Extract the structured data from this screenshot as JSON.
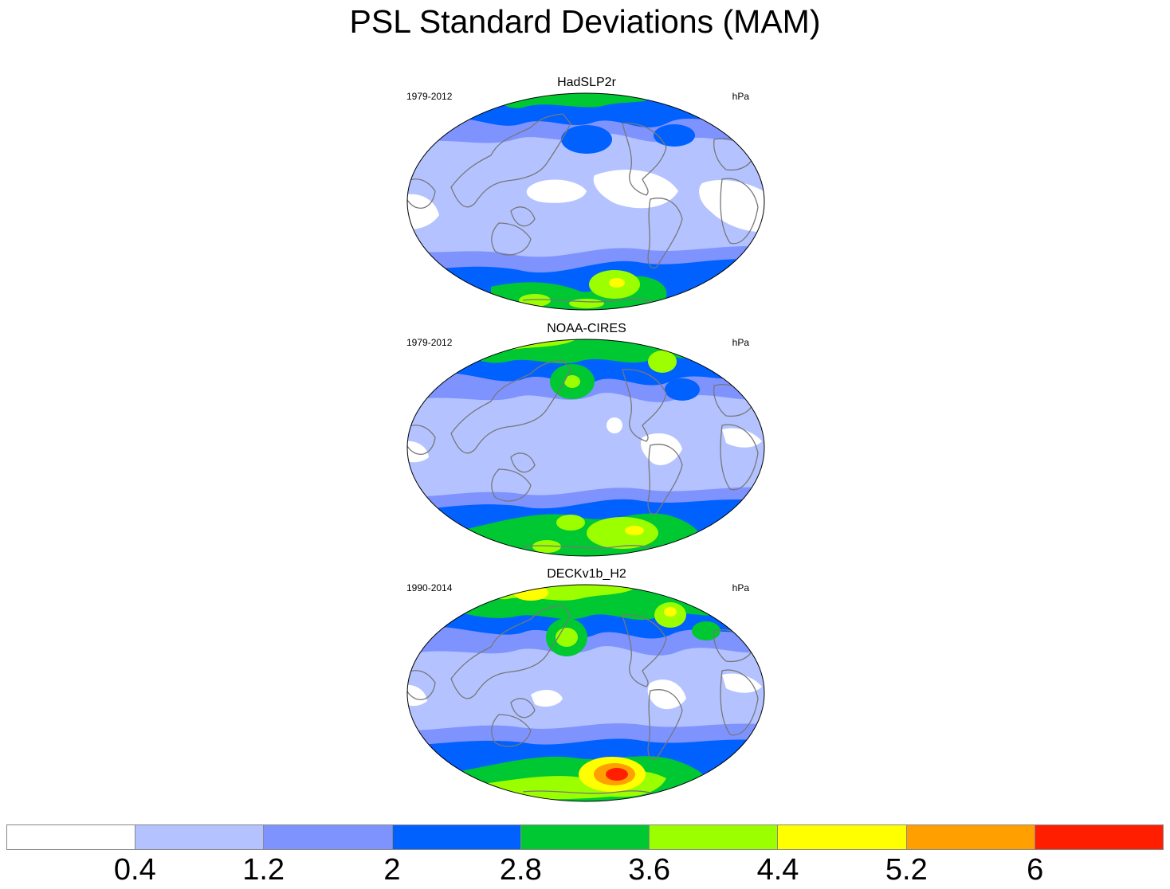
{
  "title": "PSL Standard Deviations (MAM)",
  "panels": [
    {
      "name": "HadSLP2r",
      "period": "1979-2012",
      "units": "hPa"
    },
    {
      "name": "NOAA-CIRES",
      "period": "1979-2012",
      "units": "hPa"
    },
    {
      "name": "DECKv1b_H2",
      "period": "1990-2014",
      "units": "hPa"
    }
  ],
  "colorbar": {
    "labels": [
      "0.4",
      "1.2",
      "2",
      "2.8",
      "3.6",
      "4.4",
      "5.2",
      "6"
    ],
    "colors": [
      "#ffffff",
      "#b4c3ff",
      "#7f93ff",
      "#0061ff",
      "#00c832",
      "#9bff00",
      "#ffff00",
      "#ffa000",
      "#ff1e00"
    ]
  },
  "map_colors": {
    "land_outline": "#777777",
    "ocean_background": "#b4c3ff"
  }
}
